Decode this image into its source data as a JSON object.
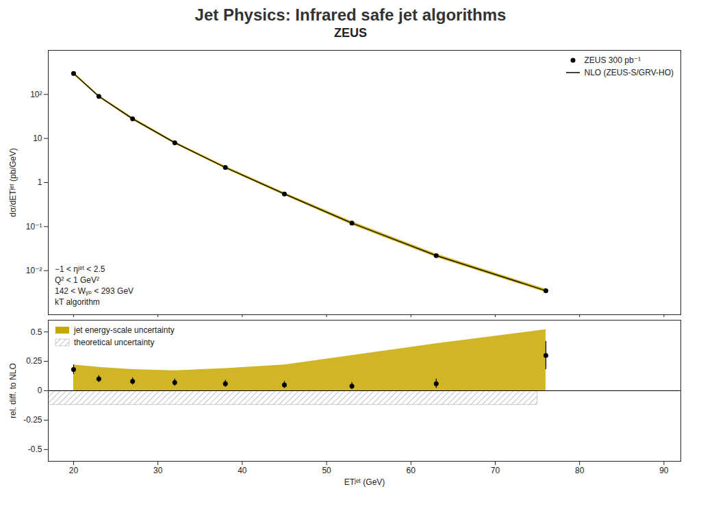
{
  "chart_data": [
    {
      "type": "line",
      "title": "Jet Physics: Infrared safe jet algorithms",
      "subtitle": "ZEUS",
      "x": [
        20,
        23,
        27,
        32,
        38,
        45,
        53,
        63,
        76
      ],
      "xlim": [
        17,
        92
      ],
      "xticks": [
        20,
        30,
        40,
        50,
        60,
        70,
        80,
        90
      ],
      "ylim": [
        0.001,
        1000
      ],
      "yticks": [
        {
          "value": 100,
          "label": "10²"
        },
        10,
        1,
        {
          "value": 0.1,
          "label": "10⁻¹"
        },
        {
          "value": 0.01,
          "label": "10⁻²"
        }
      ],
      "log": "y",
      "ylabel": "dσ/dETʲᵉᵗ (pb/GeV)",
      "tick_labels": "y",
      "grid": false,
      "legend": "upper right",
      "series": [
        {
          "name": "ZEUS 300 pb⁻¹",
          "type": "scatter",
          "marker": "o",
          "color": "#000000",
          "values": [
            300,
            90,
            28,
            8,
            2.2,
            0.55,
            0.12,
            0.022,
            0.0035
          ]
        },
        {
          "name": "NLO (ZEUS-S/GRV-HO)",
          "type": "line",
          "color": "#000000",
          "values": [
            300,
            90,
            28,
            8,
            2.2,
            0.55,
            0.12,
            0.022,
            0.0035
          ]
        },
        {
          "type": "area",
          "color": "#c8a800",
          "lower": [
            280,
            85,
            26,
            7.5,
            2.05,
            0.51,
            0.11,
            0.02,
            0.0032
          ],
          "upper": [
            320,
            96,
            30,
            8.5,
            2.35,
            0.59,
            0.13,
            0.024,
            0.0038
          ]
        }
      ],
      "annotations": [
        "−1 < ηʲᵉᵗ < 2.5",
        "Q² < 1 GeV²",
        "142 < Wᵧₚ < 293 GeV",
        "kT algorithm"
      ]
    },
    {
      "type": "scatter",
      "x": [
        20,
        23,
        27,
        32,
        38,
        45,
        53,
        63,
        76
      ],
      "xlim": [
        17,
        92
      ],
      "xticks": [
        20,
        30,
        40,
        50,
        60,
        70,
        80,
        90
      ],
      "xlabel": "ETʲᵉᵗ (GeV)",
      "ylim": [
        -0.6,
        0.6
      ],
      "yticks": [
        -0.5,
        -0.25,
        0,
        0.25,
        0.5
      ],
      "ylabel": "rel. diff. to NLO",
      "grid": false,
      "legend": "upper left",
      "hline": 0,
      "series": [
        {
          "name": "jet energy-scale uncertainty",
          "type": "area",
          "color": "#c8a800",
          "lower": [
            0.0,
            0.0,
            0.0,
            0.0,
            0.0,
            0.0,
            0.0,
            0.0,
            0.0
          ],
          "upper": [
            0.22,
            0.2,
            0.18,
            0.17,
            0.19,
            0.22,
            0.3,
            0.4,
            0.52
          ]
        },
        {
          "name": "theoretical uncertainty",
          "type": "hatch",
          "color": "#999999",
          "x": [
            17,
            75
          ],
          "lower": [
            -0.12,
            -0.12
          ],
          "upper": [
            0.0,
            0.0
          ]
        },
        {
          "type": "scatter",
          "marker": "o",
          "color": "#000000",
          "values": [
            0.18,
            0.1,
            0.08,
            0.07,
            0.06,
            0.05,
            0.04,
            0.06,
            0.3
          ],
          "errors": [
            0.04,
            0.03,
            0.03,
            0.03,
            0.03,
            0.03,
            0.03,
            0.04,
            0.12
          ]
        }
      ]
    }
  ]
}
